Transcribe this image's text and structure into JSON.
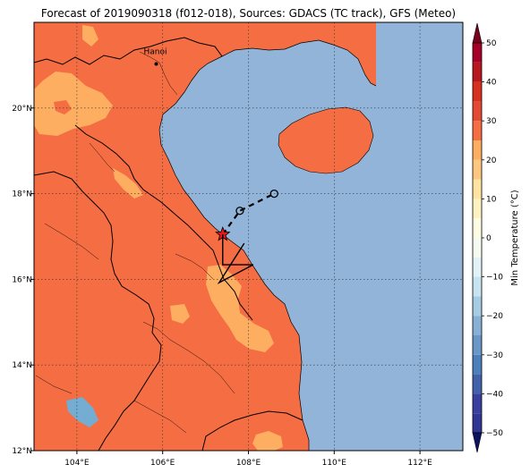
{
  "title": "Forecast of 2019090318 (f012-018), Sources: GDACS (TC track), GFS (Meteo)",
  "map": {
    "lon_range": [
      103,
      113
    ],
    "lat_range": [
      12,
      22
    ],
    "lon_ticks": [
      {
        "value": 104,
        "label": "104°E"
      },
      {
        "value": 106,
        "label": "106°E"
      },
      {
        "value": 108,
        "label": "108°E"
      },
      {
        "value": 110,
        "label": "110°E"
      },
      {
        "value": 112,
        "label": "112°E"
      }
    ],
    "lat_ticks": [
      {
        "value": 12,
        "label": "12°N"
      },
      {
        "value": 14,
        "label": "14°N"
      },
      {
        "value": 16,
        "label": "16°N"
      },
      {
        "value": 18,
        "label": "18°N"
      },
      {
        "value": 20,
        "label": "20°N"
      }
    ],
    "grid": true,
    "colors": {
      "land_warm": "#f46d43",
      "land_mild": "#fdae61",
      "sea": "#91b4d8",
      "cool": "#74add1",
      "border": "#000000"
    },
    "city": {
      "name": "Hanoi",
      "lon": 105.85,
      "lat": 21.03
    },
    "track": {
      "positions": [
        {
          "lon": 107.4,
          "lat": 17.05,
          "marker": "star",
          "color": "#e31a1c"
        },
        {
          "lon": 107.8,
          "lat": 17.6,
          "marker": "circle"
        },
        {
          "lon": 108.6,
          "lat": 18.0,
          "marker": "circle"
        }
      ],
      "line_style": "dashed"
    },
    "wind_barb": {
      "lon": 107.4,
      "lat": 17.05
    }
  },
  "colorbar": {
    "label": "Min Temperature (°C)",
    "ticks": [
      -50,
      -40,
      -30,
      -20,
      -10,
      0,
      10,
      20,
      30,
      40,
      50
    ],
    "levels": [
      {
        "from": -50,
        "to": -45,
        "color": "#313695"
      },
      {
        "from": -45,
        "to": -40,
        "color": "#3a3f9f"
      },
      {
        "from": -40,
        "to": -35,
        "color": "#4261aa"
      },
      {
        "from": -35,
        "to": -30,
        "color": "#4d7fbb"
      },
      {
        "from": -30,
        "to": -25,
        "color": "#6a97c8"
      },
      {
        "from": -25,
        "to": -20,
        "color": "#87b0d4"
      },
      {
        "from": -20,
        "to": -15,
        "color": "#a6cce2"
      },
      {
        "from": -15,
        "to": -10,
        "color": "#c7e3ef"
      },
      {
        "from": -10,
        "to": -5,
        "color": "#e3f2f6"
      },
      {
        "from": -5,
        "to": 0,
        "color": "#f6fbf1"
      },
      {
        "from": 0,
        "to": 5,
        "color": "#fffce4"
      },
      {
        "from": 5,
        "to": 10,
        "color": "#fff2c2"
      },
      {
        "from": 10,
        "to": 15,
        "color": "#fee4a0"
      },
      {
        "from": 15,
        "to": 20,
        "color": "#fdc77f"
      },
      {
        "from": 20,
        "to": 25,
        "color": "#fdae61"
      },
      {
        "from": 25,
        "to": 30,
        "color": "#f46d43"
      },
      {
        "from": 30,
        "to": 35,
        "color": "#e34a33"
      },
      {
        "from": 35,
        "to": 40,
        "color": "#d7301f"
      },
      {
        "from": 40,
        "to": 45,
        "color": "#b7181f"
      },
      {
        "from": 45,
        "to": 50,
        "color": "#a50026"
      }
    ],
    "extend_low_color": "#0b1463",
    "extend_high_color": "#7a001e"
  }
}
